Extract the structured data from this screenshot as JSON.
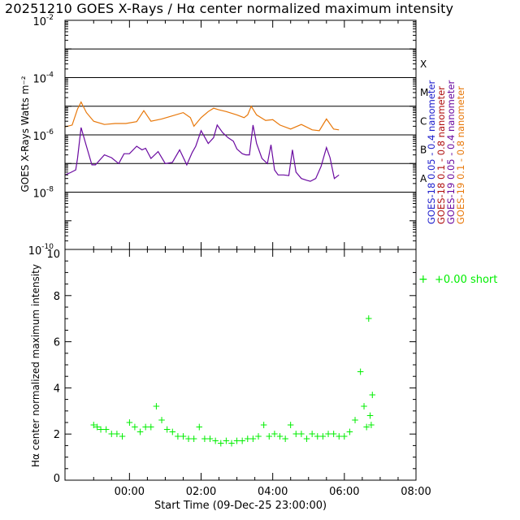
{
  "title": "20251210 GOES X-Rays / Hα center normalized maximum intensity",
  "colors": {
    "goes18_short": "#1c1ccc",
    "goes18_long": "#b0100f",
    "goes19_short": "#6a0aa0",
    "goes19_long": "#e8780a",
    "halpha": "#00ee00"
  },
  "chart_data": [
    {
      "type": "line",
      "name": "goes-xray",
      "ylabel": "GOES X-Rays Watts m⁻²",
      "yscale": "log",
      "ylim": [
        1e-10,
        0.01
      ],
      "xlim_hours": [
        -0.8,
        9.0
      ],
      "ytick_labels": [
        {
          "base": "10",
          "exp": "-2",
          "value": 0.01
        },
        {
          "base": "10",
          "exp": "-4",
          "value": 0.0001
        },
        {
          "base": "10",
          "exp": "-6",
          "value": 1e-06
        },
        {
          "base": "10",
          "exp": "-8",
          "value": 1e-08
        },
        {
          "base": "10",
          "exp": "-10",
          "value": 1e-10
        }
      ],
      "flare_thresholds": [
        0.001,
        0.0001,
        1e-05,
        1e-06,
        1e-07,
        1e-08
      ],
      "flare_class_labels": [
        {
          "label": "X",
          "value": 0.0001
        },
        {
          "label": "M",
          "value": 1e-05
        },
        {
          "label": "C",
          "value": 1e-06
        },
        {
          "label": "B",
          "value": 1e-07
        },
        {
          "label": "A",
          "value": 1e-08
        }
      ],
      "legend": [
        {
          "text": "GOES-18  0.05 - 0.4 nanometer",
          "color": "#1c1ccc"
        },
        {
          "text": "GOES-18  0.1 - 0.8 nanometer",
          "color": "#b0100f"
        },
        {
          "text": "GOES-19  0.05 - 0.4 nanometer",
          "color": "#6a0aa0"
        },
        {
          "text": "GOES-19  0.1 - 0.8 nanometer",
          "color": "#e8780a"
        }
      ],
      "series": [
        {
          "name": "GOES-19 0.1-0.8 nm",
          "color": "#e8780a",
          "x": [
            -0.8,
            -0.6,
            -0.45,
            -0.35,
            -0.2,
            0,
            0.3,
            0.6,
            0.9,
            1.2,
            1.4,
            1.6,
            1.9,
            2.2,
            2.5,
            2.7,
            2.8,
            3.0,
            3.2,
            3.35,
            3.5,
            3.7,
            4.0,
            4.2,
            4.3,
            4.4,
            4.55,
            4.8,
            5.0,
            5.2,
            5.5,
            5.8,
            6.1,
            6.3,
            6.5,
            6.7,
            6.85
          ],
          "y": [
            1.9e-06,
            2.2e-06,
            8e-06,
            1.4e-05,
            6e-06,
            3e-06,
            2.3e-06,
            2.5e-06,
            2.5e-06,
            2.9e-06,
            7e-06,
            3e-06,
            3.6e-06,
            4.6e-06,
            6e-06,
            4e-06,
            2e-06,
            4e-06,
            6.5e-06,
            8.5e-06,
            7.5e-06,
            6.5e-06,
            5e-06,
            4e-06,
            5e-06,
            1e-05,
            5e-06,
            3.2e-06,
            3.4e-06,
            2.2e-06,
            1.6e-06,
            2.3e-06,
            1.5e-06,
            1.4e-06,
            3.6e-06,
            1.6e-06,
            1.5e-06
          ]
        },
        {
          "name": "GOES-19 0.05-0.4 nm",
          "color": "#6a0aa0",
          "x": [
            -0.8,
            -0.65,
            -0.5,
            -0.45,
            -0.35,
            -0.2,
            -0.05,
            0.05,
            0.3,
            0.5,
            0.7,
            0.85,
            1.0,
            1.2,
            1.35,
            1.45,
            1.6,
            1.8,
            2.0,
            2.2,
            2.4,
            2.6,
            2.75,
            2.85,
            3.0,
            3.2,
            3.35,
            3.45,
            3.6,
            3.75,
            3.9,
            4.0,
            4.15,
            4.25,
            4.35,
            4.45,
            4.55,
            4.7,
            4.85,
            4.95,
            5.05,
            5.15,
            5.3,
            5.45,
            5.55,
            5.65,
            5.8,
            5.95,
            6.05,
            6.2,
            6.35,
            6.5,
            6.6,
            6.72,
            6.85
          ],
          "y": [
            4e-08,
            4.8e-08,
            6e-08,
            1.5e-07,
            1.8e-06,
            4e-07,
            9e-08,
            9e-08,
            2e-07,
            1.6e-07,
            1e-07,
            2.2e-07,
            2.2e-07,
            4e-07,
            3e-07,
            3.4e-07,
            1.5e-07,
            2.6e-07,
            1e-07,
            1.1e-07,
            3e-07,
            9e-08,
            2.4e-07,
            4e-07,
            1.4e-06,
            5e-07,
            8e-07,
            2.2e-06,
            1.2e-06,
            8e-07,
            6e-07,
            3.2e-07,
            2.2e-07,
            2e-07,
            2e-07,
            2.2e-06,
            5e-07,
            1.5e-07,
            1e-07,
            4.5e-07,
            6e-08,
            4e-08,
            4e-08,
            3.8e-08,
            3e-07,
            5e-08,
            3e-08,
            2.6e-08,
            2.4e-08,
            3e-08,
            8e-08,
            3.6e-07,
            1.6e-07,
            3e-08,
            4e-08
          ]
        }
      ]
    },
    {
      "type": "scatter",
      "name": "halpha",
      "ylabel": "Hα center normalized maximum intensity",
      "xlabel": "Start Time (09-Dec-25 23:00:00)",
      "ylim": [
        0,
        10
      ],
      "xlim_hours": [
        -0.8,
        9.0
      ],
      "yticks": [
        {
          "label": "0",
          "value": 0
        },
        {
          "label": "2",
          "value": 2
        },
        {
          "label": "4",
          "value": 4
        },
        {
          "label": "6",
          "value": 6
        },
        {
          "label": "8",
          "value": 8
        },
        {
          "label": "10",
          "value": 10
        }
      ],
      "xticks": [
        {
          "label": "00:00",
          "value": 1
        },
        {
          "label": "02:00",
          "value": 3
        },
        {
          "label": "04:00",
          "value": 5
        },
        {
          "label": "06:00",
          "value": 7
        },
        {
          "label": "08:00",
          "value": 9
        }
      ],
      "legend": {
        "marker": "+",
        "text": "+0.00 short",
        "color": "#00ee00"
      },
      "series": [
        {
          "name": "Hα intensity",
          "color": "#00ee00",
          "x": [
            0,
            0.1,
            0.2,
            0.35,
            0.5,
            0.65,
            0.8,
            1.0,
            1.15,
            1.3,
            1.45,
            1.6,
            1.75,
            1.9,
            2.05,
            2.2,
            2.35,
            2.5,
            2.65,
            2.8,
            2.95,
            3.1,
            3.25,
            3.4,
            3.55,
            3.7,
            3.85,
            4.0,
            4.15,
            4.3,
            4.45,
            4.6,
            4.75,
            4.9,
            5.05,
            5.2,
            5.35,
            5.5,
            5.65,
            5.8,
            5.95,
            6.1,
            6.25,
            6.4,
            6.55,
            6.7,
            6.85,
            7.0,
            7.15,
            7.3,
            7.45,
            7.55,
            7.62,
            7.68,
            7.72,
            7.75,
            7.78
          ],
          "y": [
            2.4,
            2.3,
            2.2,
            2.2,
            2.0,
            2.0,
            1.9,
            2.5,
            2.3,
            2.1,
            2.3,
            2.3,
            3.2,
            2.6,
            2.2,
            2.1,
            1.9,
            1.9,
            1.8,
            1.8,
            2.3,
            1.8,
            1.8,
            1.7,
            1.6,
            1.7,
            1.6,
            1.7,
            1.7,
            1.8,
            1.8,
            1.9,
            2.4,
            1.9,
            2.0,
            1.9,
            1.8,
            2.4,
            2.0,
            2.0,
            1.8,
            2.0,
            1.9,
            1.9,
            2.0,
            2.0,
            1.9,
            1.9,
            2.1,
            2.6,
            4.7,
            3.2,
            2.3,
            7.0,
            2.8,
            2.4,
            3.7
          ]
        }
      ]
    }
  ]
}
